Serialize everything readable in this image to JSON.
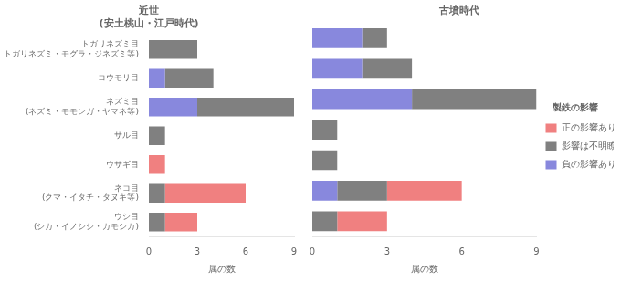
{
  "chart_data": [
    {
      "type": "bar",
      "orientation": "horizontal",
      "stacked": true,
      "title": "近世\n(安土桃山・江戸時代)",
      "x_label": "属の数",
      "categories": [
        "トガリネズミ目\n(トガリネズミ・モグラ・ジネズミ等)",
        "コウモリ目",
        "ネズミ目\n(ネズミ・モモンガ・ヤマネ等)",
        "サル目",
        "ウサギ目",
        "ネコ目\n(クマ・イタチ・タヌキ等)",
        "ウシ目\n(シカ・イノシシ・カモシカ)"
      ],
      "series": [
        {
          "name": "正の影響あり",
          "color": "#F08080",
          "values": [
            0,
            0,
            0,
            0,
            1,
            5,
            2
          ]
        },
        {
          "name": "影響は不明瞭",
          "color": "#808080",
          "values": [
            3,
            3,
            6,
            1,
            0,
            1,
            1
          ]
        },
        {
          "name": "負の影響あり",
          "color": "#8888DD",
          "values": [
            0,
            1,
            3,
            0,
            0,
            0,
            0
          ]
        }
      ],
      "xlim": [
        0,
        9
      ],
      "xticks": [
        0,
        3,
        6,
        9
      ],
      "grid": false,
      "legend": false
    },
    {
      "type": "bar",
      "orientation": "horizontal",
      "stacked": true,
      "title": "古墳時代",
      "x_label": "属の数",
      "categories": [
        "トガリネズミ目\n(トガリネズミ・モグラ・ジネズミ等)",
        "コウモリ目",
        "ネズミ目\n(ネズミ・モモンガ・ヤマネ等)",
        "サル目",
        "ウサギ目",
        "ネコ目\n(クマ・イタチ・タヌキ等)",
        "ウシ目\n(シカ・イノシシ・カモシカ)"
      ],
      "series": [
        {
          "name": "正の影響あり",
          "color": "#F08080",
          "values": [
            0,
            0,
            0,
            0,
            0,
            3,
            2
          ]
        },
        {
          "name": "影響は不明瞭",
          "color": "#808080",
          "values": [
            1,
            2,
            5,
            1,
            1,
            2,
            1
          ]
        },
        {
          "name": "負の影響あり",
          "color": "#8888DD",
          "values": [
            2,
            2,
            4,
            0,
            0,
            1,
            0
          ]
        }
      ],
      "xlim": [
        0,
        9
      ],
      "xticks": [
        0,
        3,
        6,
        9
      ],
      "grid": false,
      "legend": "right",
      "legend_title": "製鉄の影響",
      "tick_labels": "x"
    }
  ]
}
